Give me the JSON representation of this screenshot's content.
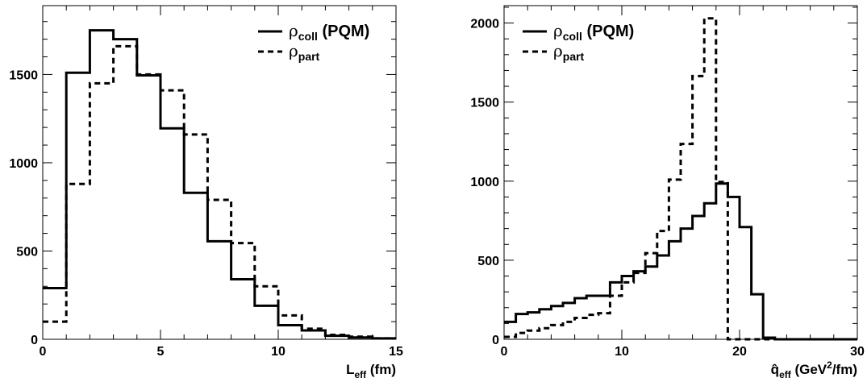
{
  "chart_data": [
    {
      "type": "step",
      "title": "",
      "xlabel": {
        "main": "L",
        "sub": "eff",
        "tail": " (fm)"
      },
      "ylabel": "",
      "xlim": [
        0,
        15
      ],
      "ylim": [
        0,
        1890
      ],
      "xticks": [
        0,
        5,
        10,
        15
      ],
      "yticks": [
        0,
        500,
        1000,
        1500
      ],
      "grid": false,
      "legend_position": "top-right",
      "bin_width": 1,
      "series": [
        {
          "name": {
            "main": "ρ",
            "sub": "coll",
            "tail": " (PQM)"
          },
          "style": "solid",
          "values": [
            290,
            1510,
            1750,
            1700,
            1495,
            1195,
            830,
            555,
            340,
            190,
            80,
            50,
            20,
            10,
            5
          ]
        },
        {
          "name": {
            "main": "ρ",
            "sub": "part",
            "tail": ""
          },
          "style": "dashed",
          "values": [
            100,
            880,
            1450,
            1660,
            1500,
            1410,
            1160,
            790,
            545,
            300,
            135,
            60,
            25,
            15,
            5
          ]
        }
      ]
    },
    {
      "type": "step",
      "title": "",
      "xlabel": {
        "main": "q̂",
        "sub": "eff",
        "tail": " (GeV",
        "sup": "2",
        "tail2": "/fm)"
      },
      "ylabel": "",
      "xlim": [
        0,
        30
      ],
      "ylim": [
        0,
        2110
      ],
      "xticks": [
        0,
        10,
        20,
        30
      ],
      "yticks": [
        0,
        500,
        1000,
        1500,
        2000
      ],
      "grid": false,
      "legend_position": "top-left",
      "bin_width": 1,
      "series": [
        {
          "name": {
            "main": "ρ",
            "sub": "coll",
            "tail": " (PQM)"
          },
          "style": "solid",
          "values": [
            110,
            160,
            170,
            190,
            210,
            230,
            260,
            275,
            275,
            360,
            400,
            430,
            460,
            530,
            620,
            700,
            780,
            860,
            985,
            900,
            710,
            285,
            10,
            0,
            0,
            0,
            0,
            0,
            0,
            0
          ]
        },
        {
          "name": {
            "main": "ρ",
            "sub": "part",
            "tail": ""
          },
          "style": "dashed",
          "values": [
            15,
            40,
            55,
            70,
            90,
            110,
            135,
            155,
            165,
            275,
            360,
            420,
            545,
            685,
            1010,
            1235,
            1665,
            2030,
            995,
            0,
            0,
            0,
            0,
            0,
            0,
            0,
            0,
            0,
            0,
            0
          ]
        }
      ]
    }
  ]
}
